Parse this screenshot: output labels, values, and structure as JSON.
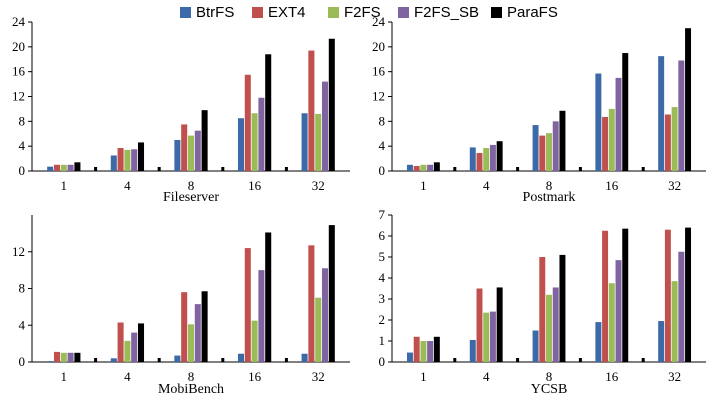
{
  "legend": {
    "items": [
      {
        "label": "BtrFS",
        "color": "#3c6aa8"
      },
      {
        "label": "EXT4",
        "color": "#c0504d"
      },
      {
        "label": "F2FS",
        "color": "#9bbb59"
      },
      {
        "label": "F2FS_SB",
        "color": "#8064a2"
      },
      {
        "label": "ParaFS",
        "color": "#000000"
      }
    ]
  },
  "chart_data": [
    {
      "type": "bar",
      "title": "Fileserver",
      "categories": [
        "1",
        "4",
        "8",
        "16",
        "32"
      ],
      "ylim": [
        0,
        24
      ],
      "yticks": [
        0,
        4,
        8,
        12,
        16,
        20,
        24
      ],
      "grid": false,
      "series": [
        {
          "name": "BtrFS",
          "values": [
            0.7,
            2.5,
            5.0,
            8.5,
            9.3
          ]
        },
        {
          "name": "EXT4",
          "values": [
            1.0,
            3.7,
            7.5,
            15.5,
            19.4
          ]
        },
        {
          "name": "F2FS",
          "values": [
            1.0,
            3.4,
            5.7,
            9.3,
            9.2
          ]
        },
        {
          "name": "F2FS_SB",
          "values": [
            1.0,
            3.5,
            6.5,
            11.8,
            14.4
          ]
        },
        {
          "name": "ParaFS",
          "values": [
            1.4,
            4.6,
            9.8,
            18.8,
            21.3
          ]
        }
      ]
    },
    {
      "type": "bar",
      "title": "Postmark",
      "categories": [
        "1",
        "4",
        "8",
        "16",
        "32"
      ],
      "ylim": [
        0,
        24
      ],
      "yticks": [
        0,
        4,
        8,
        12,
        16,
        20,
        24
      ],
      "grid": false,
      "series": [
        {
          "name": "BtrFS",
          "values": [
            1.0,
            3.8,
            7.4,
            15.7,
            18.5
          ]
        },
        {
          "name": "EXT4",
          "values": [
            0.8,
            2.9,
            5.7,
            8.7,
            9.1
          ]
        },
        {
          "name": "F2FS",
          "values": [
            1.0,
            3.7,
            6.1,
            10.0,
            10.3
          ]
        },
        {
          "name": "F2FS_SB",
          "values": [
            1.0,
            4.2,
            8.0,
            15.0,
            17.8
          ]
        },
        {
          "name": "ParaFS",
          "values": [
            1.4,
            4.8,
            9.7,
            19.0,
            23.0
          ]
        }
      ]
    },
    {
      "type": "bar",
      "title": "MobiBench",
      "categories": [
        "1",
        "4",
        "8",
        "16",
        "32"
      ],
      "ylim": [
        0,
        16
      ],
      "yticks": [
        0,
        4,
        8,
        12
      ],
      "grid": false,
      "series": [
        {
          "name": "BtrFS",
          "values": [
            0.1,
            0.4,
            0.7,
            0.9,
            0.9
          ]
        },
        {
          "name": "EXT4",
          "values": [
            1.1,
            4.3,
            7.6,
            12.4,
            12.7
          ]
        },
        {
          "name": "F2FS",
          "values": [
            1.0,
            2.3,
            4.1,
            4.5,
            7.0
          ]
        },
        {
          "name": "F2FS_SB",
          "values": [
            1.0,
            3.2,
            6.3,
            10.0,
            10.2
          ]
        },
        {
          "name": "ParaFS",
          "values": [
            1.0,
            4.2,
            7.7,
            14.1,
            14.9
          ]
        }
      ]
    },
    {
      "type": "bar",
      "title": "YCSB",
      "categories": [
        "1",
        "4",
        "8",
        "16",
        "32"
      ],
      "ylim": [
        0,
        7
      ],
      "yticks": [
        0,
        1,
        2,
        3,
        4,
        5,
        6,
        7
      ],
      "grid": false,
      "series": [
        {
          "name": "BtrFS",
          "values": [
            0.45,
            1.05,
            1.5,
            1.9,
            1.95
          ]
        },
        {
          "name": "EXT4",
          "values": [
            1.2,
            3.5,
            5.0,
            6.25,
            6.3
          ]
        },
        {
          "name": "F2FS",
          "values": [
            1.0,
            2.35,
            3.2,
            3.75,
            3.85
          ]
        },
        {
          "name": "F2FS_SB",
          "values": [
            1.0,
            2.4,
            3.55,
            4.85,
            5.25
          ]
        },
        {
          "name": "ParaFS",
          "values": [
            1.2,
            3.55,
            5.1,
            6.35,
            6.4
          ]
        }
      ]
    }
  ]
}
